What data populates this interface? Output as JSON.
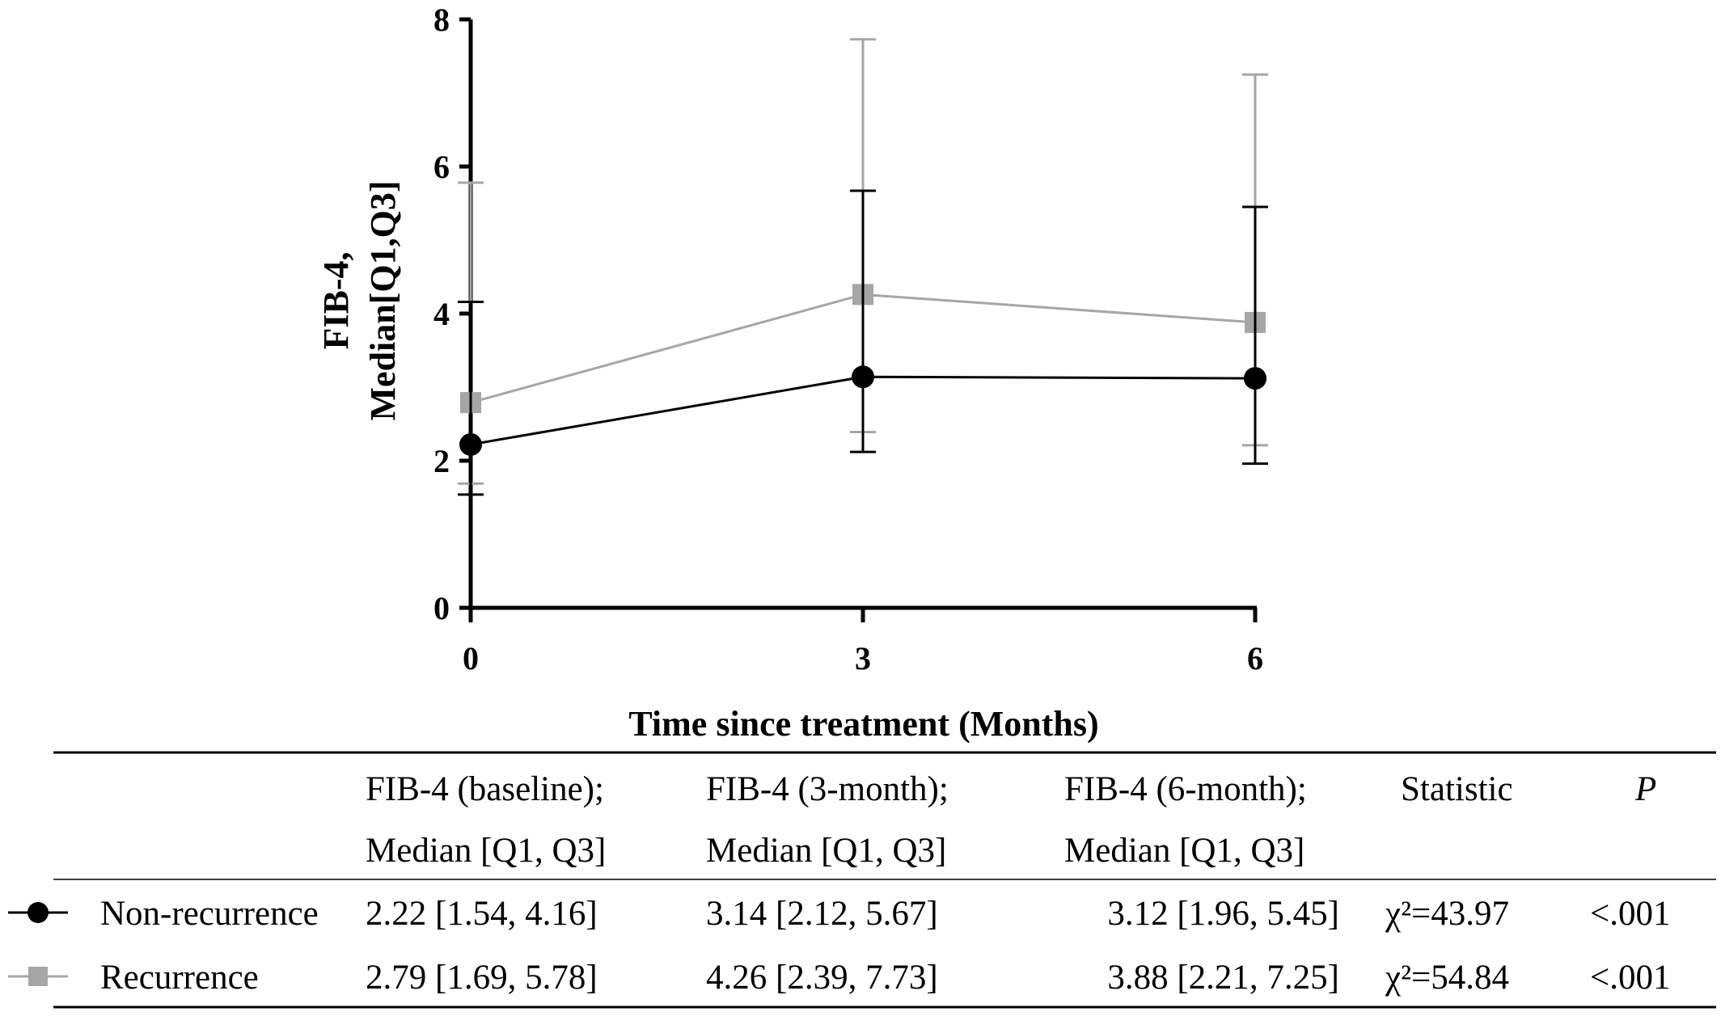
{
  "chart_data": {
    "type": "line",
    "xlabel": "Time since treatment (Months)",
    "ylabel_line1": "FIB-4,",
    "ylabel_line2": "Median[Q1,Q3]",
    "x": [
      0,
      3,
      6
    ],
    "x_ticks": [
      "0",
      "3",
      "6"
    ],
    "y_ticks": [
      "0",
      "2",
      "4",
      "6",
      "8"
    ],
    "xlim": [
      0,
      6
    ],
    "ylim": [
      0,
      8
    ],
    "grid": false,
    "series": [
      {
        "name": "Non-recurrence",
        "marker": "circle",
        "color": "#000000",
        "median": [
          2.22,
          3.14,
          3.12
        ],
        "q1": [
          1.54,
          2.12,
          1.96
        ],
        "q3": [
          4.16,
          5.67,
          5.45
        ]
      },
      {
        "name": "Recurrence",
        "marker": "square",
        "color": "#a6a6a6",
        "median": [
          2.79,
          4.26,
          3.88
        ],
        "q1": [
          1.69,
          2.39,
          2.21
        ],
        "q3": [
          5.78,
          7.73,
          7.25
        ]
      }
    ]
  },
  "table": {
    "headers": [
      {
        "line1": "",
        "line2": ""
      },
      {
        "line1": "FIB-4 (baseline);",
        "line2": "Median [Q1, Q3]"
      },
      {
        "line1": "FIB-4 (3-month);",
        "line2": "Median [Q1, Q3]"
      },
      {
        "line1": "FIB-4 (6-month);",
        "line2": "Median [Q1, Q3]"
      },
      {
        "line1": "Statistic",
        "line2": ""
      },
      {
        "line1": "P",
        "line2": ""
      }
    ],
    "rows": [
      {
        "label": "Non-recurrence",
        "baseline": "2.22 [1.54, 4.16]",
        "m3": "3.14 [2.12, 5.67]",
        "m6": "3.12 [1.96, 5.45]",
        "statistic": "χ²=43.97",
        "p": "<.001"
      },
      {
        "label": "Recurrence",
        "baseline": "2.79 [1.69, 5.78]",
        "m3": "4.26 [2.39, 7.73]",
        "m6": "3.88 [2.21, 7.25]",
        "statistic": "χ²=54.84",
        "p": "<.001"
      }
    ]
  }
}
